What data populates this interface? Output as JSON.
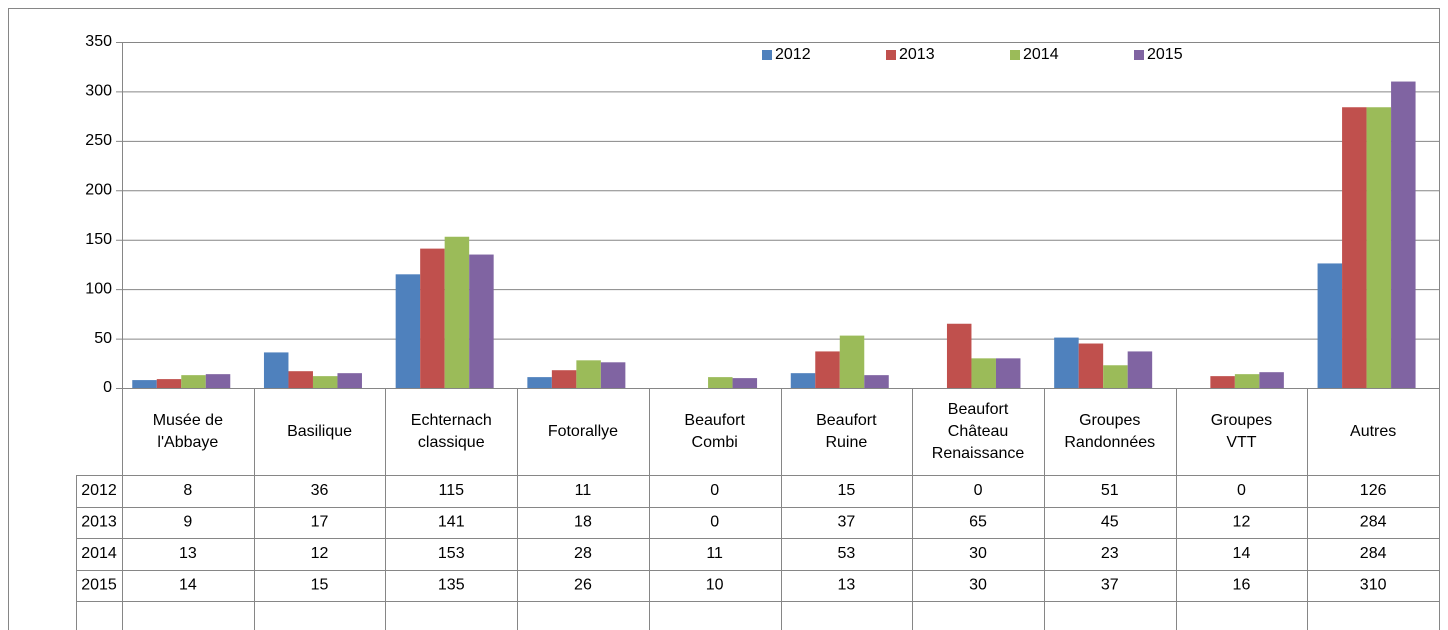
{
  "chart_data": {
    "type": "bar",
    "categories": [
      [
        "Musée de",
        "l'Abbaye"
      ],
      [
        "Basilique"
      ],
      [
        "Echternach",
        "classique"
      ],
      [
        "Fotorallye"
      ],
      [
        "Beaufort",
        "Combi"
      ],
      [
        "Beaufort",
        "Ruine"
      ],
      [
        "Beaufort",
        "Château",
        "Renaissance"
      ],
      [
        "Groupes",
        "Randonnées"
      ],
      [
        "Groupes",
        "VTT"
      ],
      [
        "Autres"
      ]
    ],
    "series": [
      {
        "name": "2012",
        "color": "#4f81bd",
        "values": [
          8,
          36,
          115,
          11,
          0,
          15,
          0,
          51,
          0,
          126
        ]
      },
      {
        "name": "2013",
        "color": "#c0504d",
        "values": [
          9,
          17,
          141,
          18,
          0,
          37,
          65,
          45,
          12,
          284
        ]
      },
      {
        "name": "2014",
        "color": "#9bbb59",
        "values": [
          13,
          12,
          153,
          28,
          11,
          53,
          30,
          23,
          14,
          284
        ]
      },
      {
        "name": "2015",
        "color": "#8064a2",
        "values": [
          14,
          15,
          135,
          26,
          10,
          13,
          30,
          37,
          16,
          310
        ]
      }
    ],
    "ylim": [
      0,
      350
    ],
    "yticks": [
      0,
      50,
      100,
      150,
      200,
      250,
      300,
      350
    ],
    "grid": true,
    "legend": "top"
  }
}
